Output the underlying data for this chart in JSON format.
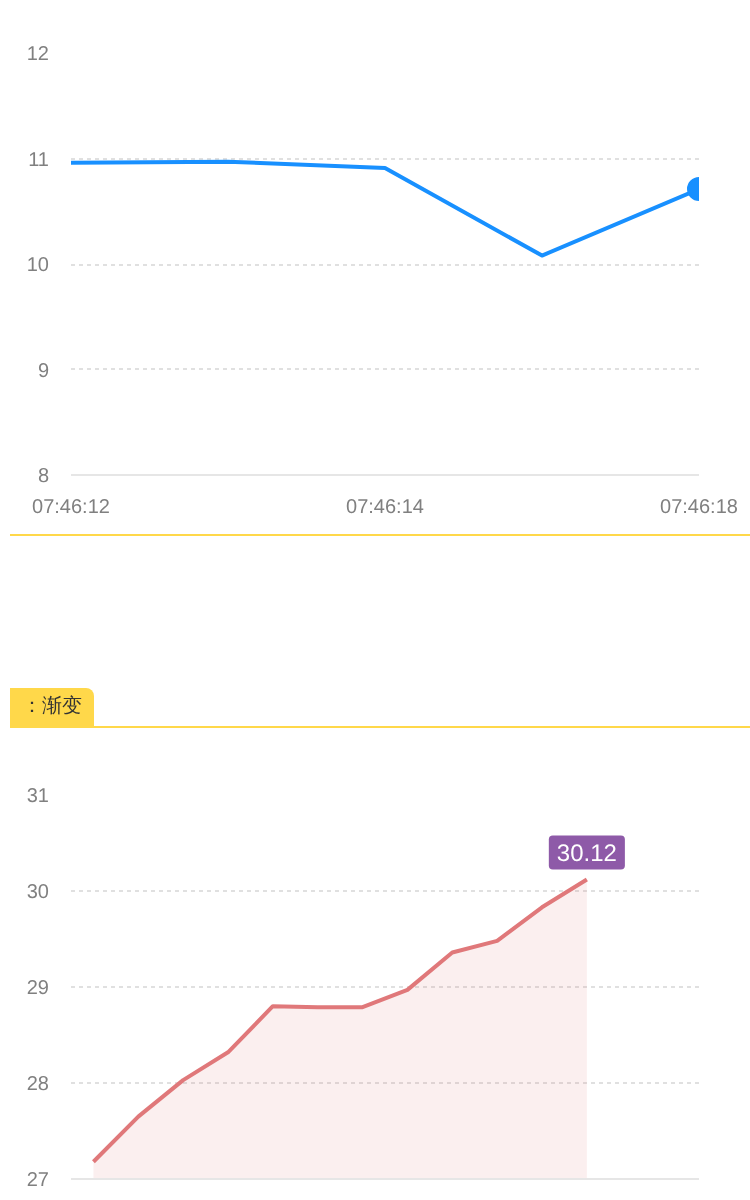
{
  "chart_data": [
    {
      "type": "line",
      "categories": [
        "07:46:12",
        null,
        "07:46:14",
        null,
        "07:46:18"
      ],
      "ylim": [
        8,
        12
      ],
      "yticks": [
        8,
        9,
        10,
        11,
        12
      ],
      "grid": "y",
      "marker": "none",
      "series": [
        {
          "type": "line",
          "color": "#1890ff",
          "values": [
            10.96,
            10.97,
            10.91,
            10.08,
            10.71
          ]
        },
        {
          "type": "scatter",
          "color": "#1890ff",
          "marker": "circle",
          "values": [
            null,
            null,
            null,
            null,
            10.71
          ]
        }
      ]
    },
    {
      "type": "area",
      "title": "：渐变",
      "categories": [
        null,
        null,
        null,
        null,
        null,
        null,
        null,
        null,
        null,
        null,
        null,
        null,
        null,
        null
      ],
      "ylim": [
        27,
        31
      ],
      "yticks": [
        27,
        28,
        29,
        30,
        31
      ],
      "grid": "y",
      "tick_labels": "y",
      "series": [
        {
          "color": "#e0787a",
          "values": [
            27.18,
            27.65,
            28.03,
            28.32,
            28.8,
            28.79,
            28.79,
            28.97,
            29.36,
            29.48,
            29.83,
            30.12,
            null,
            null
          ],
          "value_labels": [
            null,
            null,
            null,
            null,
            null,
            null,
            null,
            null,
            null,
            null,
            null,
            "30.12",
            null,
            null
          ]
        }
      ]
    }
  ]
}
